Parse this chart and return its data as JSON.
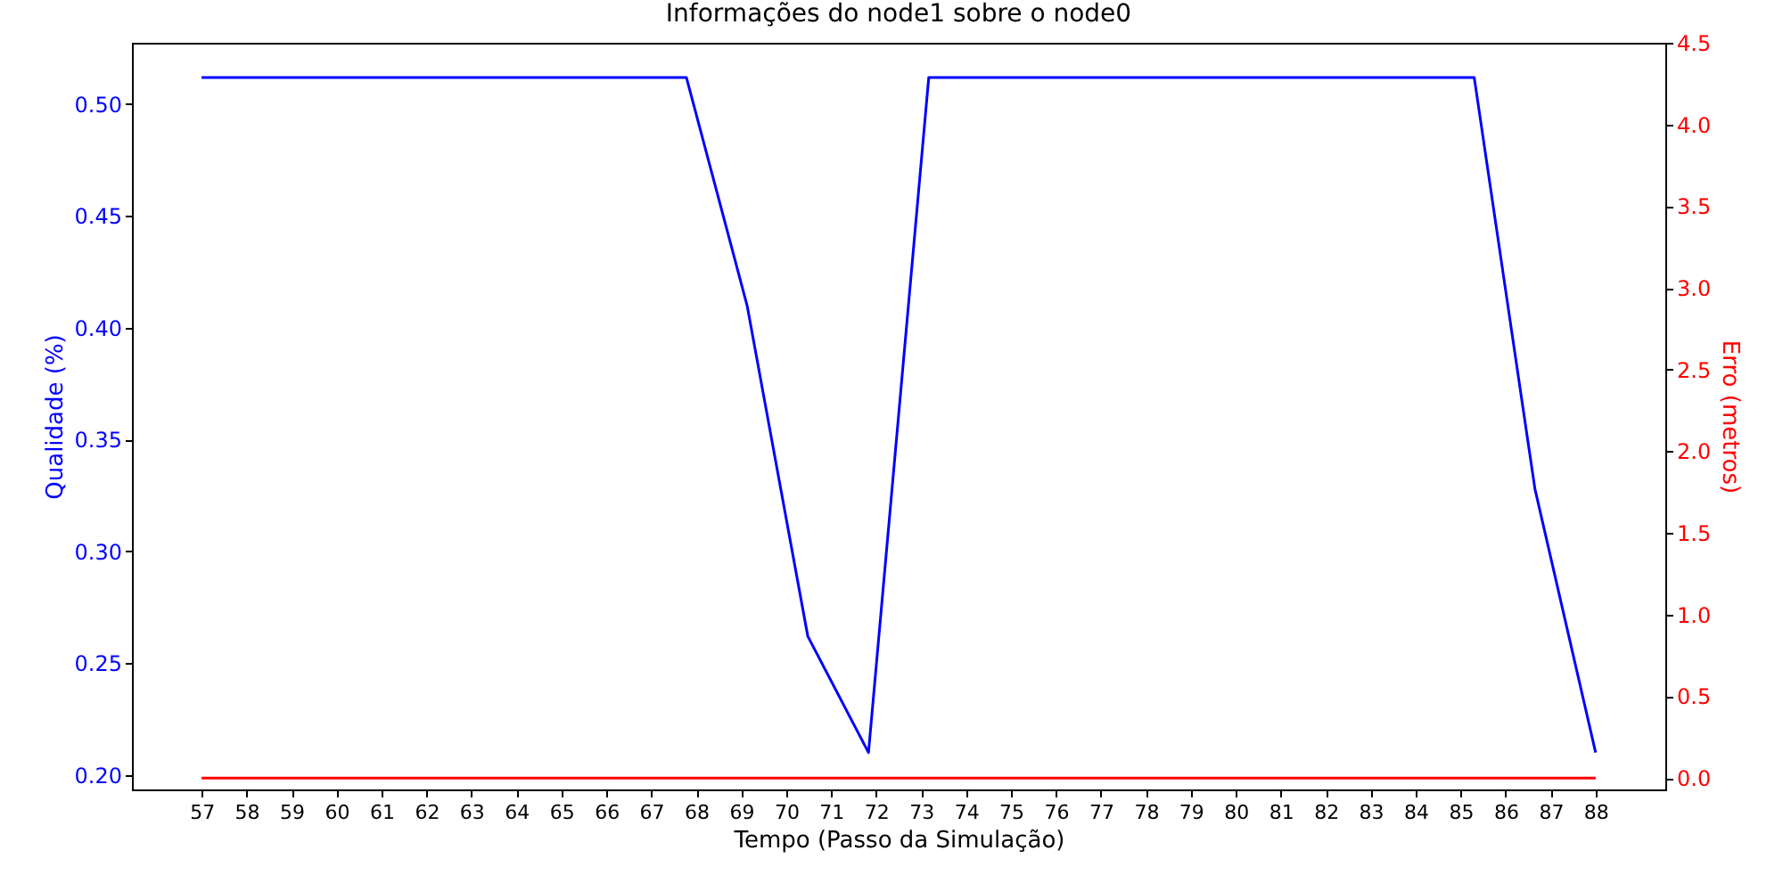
{
  "chart_data": {
    "type": "line",
    "title": "Informações do node1 sobre o node0",
    "xlabel": "Tempo (Passo da Simulação)",
    "ylabel": "Qualidade (%)",
    "y2label": "Erro (metros)",
    "x": [
      57,
      58.35,
      59.7,
      61.04,
      62.39,
      63.74,
      65.09,
      66.43,
      67.78,
      69.13,
      70.48,
      71.83,
      73.17,
      74.52,
      75.87,
      77.22,
      78.57,
      79.91,
      81.26,
      82.61,
      83.96,
      85.3,
      86.65,
      88
    ],
    "series": [
      {
        "color": "#0000ff",
        "values": [
          0.512,
          0.512,
          0.512,
          0.512,
          0.512,
          0.512,
          0.512,
          0.512,
          0.512,
          0.41,
          0.262,
          0.21,
          0.512,
          0.512,
          0.512,
          0.512,
          0.512,
          0.512,
          0.512,
          0.512,
          0.512,
          0.512,
          0.328,
          0.21
        ]
      },
      {
        "color": "#ff0000",
        "axis": "y2",
        "values": [
          0,
          0,
          0,
          0,
          0,
          0,
          0,
          0,
          0,
          0,
          0,
          0,
          0,
          0,
          0,
          0,
          0,
          0,
          0,
          0,
          0,
          0,
          0,
          0
        ]
      }
    ],
    "xlim": [
      55.45,
      89.55
    ],
    "xticks": [
      57,
      58,
      59,
      60,
      61,
      62,
      63,
      64,
      65,
      66,
      67,
      68,
      69,
      70,
      71,
      72,
      73,
      74,
      75,
      76,
      77,
      78,
      79,
      80,
      81,
      82,
      83,
      84,
      85,
      86,
      87,
      88
    ],
    "ylim": [
      0.1935,
      0.5275
    ],
    "yticks": [
      {
        "value": 0.2,
        "label": "0.20"
      },
      {
        "value": 0.25,
        "label": "0.25"
      },
      {
        "value": 0.3,
        "label": "0.30"
      },
      {
        "value": 0.35,
        "label": "0.35"
      },
      {
        "value": 0.4,
        "label": "0.40"
      },
      {
        "value": 0.45,
        "label": "0.45"
      },
      {
        "value": 0.5,
        "label": "0.50"
      }
    ],
    "y2lim": [
      -0.07,
      4.5
    ],
    "y2ticks": [
      {
        "value": 0,
        "label": "0.0"
      },
      {
        "value": 0.5,
        "label": "0.5"
      },
      {
        "value": 1,
        "label": "1.0"
      },
      {
        "value": 1.5,
        "label": "1.5"
      },
      {
        "value": 2,
        "label": "2.0"
      },
      {
        "value": 2.5,
        "label": "2.5"
      },
      {
        "value": 3,
        "label": "3.0"
      },
      {
        "value": 3.5,
        "label": "3.5"
      },
      {
        "value": 4,
        "label": "4.0"
      },
      {
        "value": 4.5,
        "label": "4.5"
      }
    ],
    "grid": false,
    "marker": "none",
    "line_style": "solid"
  }
}
